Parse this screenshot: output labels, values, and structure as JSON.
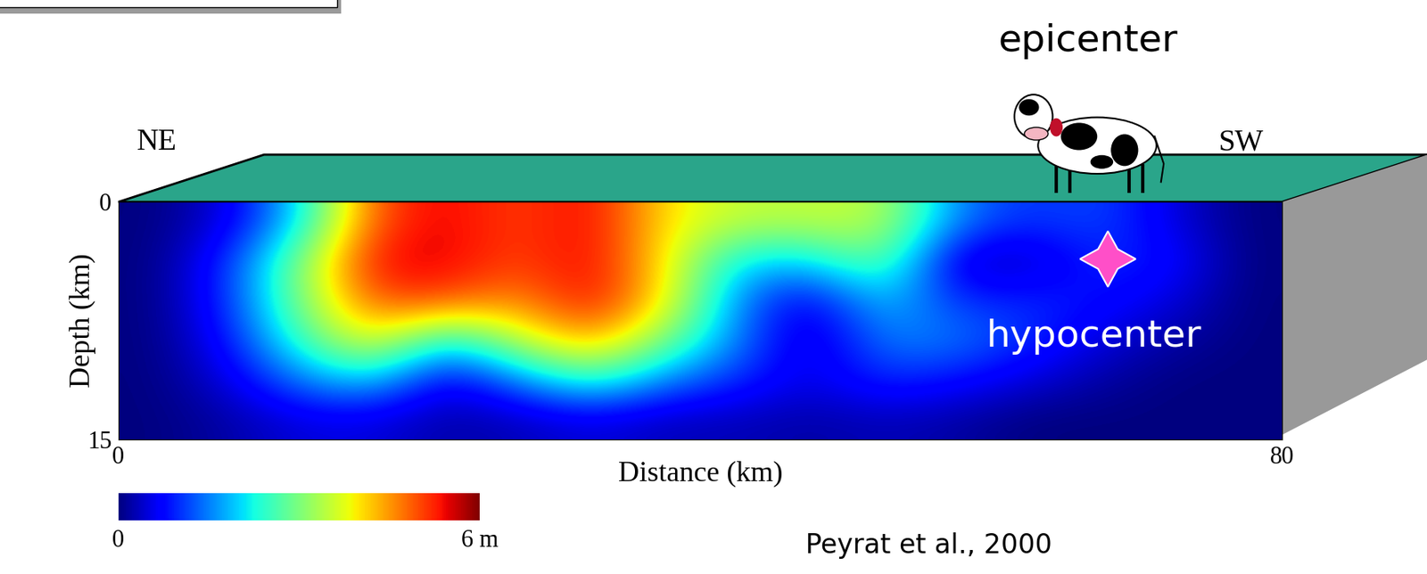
{
  "chart_data": {
    "type": "heatmap",
    "x_label": "Distance (km)",
    "y_label": "Depth (km)",
    "xlim": [
      0,
      80
    ],
    "ylim": [
      15,
      0
    ],
    "xticks": [
      0,
      80
    ],
    "yticks": [
      0,
      15
    ],
    "x_edges": [
      0,
      5,
      10,
      15,
      20,
      25,
      30,
      35,
      40,
      45,
      50,
      55,
      60,
      65,
      70,
      75,
      80
    ],
    "y_edges": [
      0,
      2.5,
      5,
      7.5,
      10,
      12.5,
      15
    ],
    "cells": [
      [
        0,
        0.5,
        2,
        5,
        5.5,
        5,
        5.5,
        4,
        3.5,
        3.5,
        3.5,
        1.5,
        1,
        1.2,
        0.5,
        0
      ],
      [
        0,
        1,
        3,
        5.5,
        5.5,
        5,
        5.5,
        4,
        2,
        2,
        3,
        0.3,
        0.3,
        1,
        0.8,
        0
      ],
      [
        0,
        1,
        3,
        5,
        5,
        4.5,
        5.5,
        4,
        1.5,
        0.5,
        2,
        1,
        1,
        0.8,
        0.5,
        0
      ],
      [
        0,
        0.8,
        2.5,
        4,
        2,
        3.5,
        4.5,
        3,
        1.5,
        0.3,
        1.5,
        1.5,
        1,
        0.5,
        0.2,
        0
      ],
      [
        0,
        0.5,
        1.5,
        2,
        0.5,
        1.5,
        2.5,
        1.5,
        1,
        0.5,
        1,
        0.8,
        0.5,
        0.2,
        0,
        0
      ],
      [
        0,
        0.2,
        0.5,
        0.5,
        0.2,
        0.3,
        0.5,
        0.3,
        0.3,
        0.2,
        0.3,
        0.2,
        0,
        0,
        0,
        0
      ]
    ],
    "colorbar": {
      "range": [
        0,
        6
      ],
      "ticks": [
        0,
        {
          "value": 6,
          "label": "6 m"
        }
      ]
    },
    "left_label": "NE",
    "right_label": "SW",
    "epicenter": {
      "text": "epicenter",
      "x": 68
    },
    "hypocenter": {
      "text": "hypocenter",
      "x": 68,
      "y": 3.6
    },
    "source": "Peyrat et al., 2000"
  }
}
